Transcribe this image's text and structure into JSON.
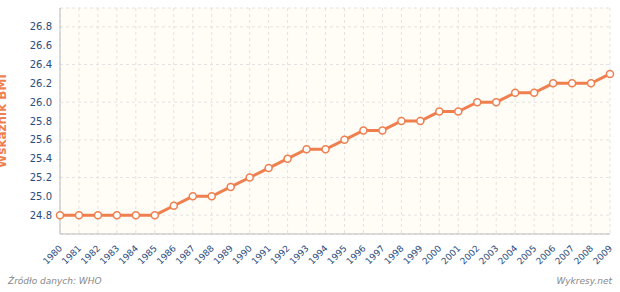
{
  "chart_data": {
    "type": "line",
    "y_label": "Wskaźnik BMI",
    "source": "Źródło danych: WHO",
    "credit": "Wykresy.net",
    "watermark": "wykresy.net",
    "categories": [
      "1980",
      "1981",
      "1982",
      "1983",
      "1984",
      "1985",
      "1986",
      "1987",
      "1988",
      "1989",
      "1990",
      "1991",
      "1992",
      "1993",
      "1994",
      "1995",
      "1996",
      "1997",
      "1998",
      "1999",
      "2000",
      "2001",
      "2002",
      "2003",
      "2004",
      "2005",
      "2006",
      "2007",
      "2008",
      "2009"
    ],
    "values": [
      24.8,
      24.8,
      24.8,
      24.8,
      24.8,
      24.8,
      24.9,
      25.0,
      25.0,
      25.1,
      25.2,
      25.3,
      25.4,
      25.5,
      25.5,
      25.6,
      25.7,
      25.7,
      25.8,
      25.8,
      25.9,
      25.9,
      26.0,
      26.0,
      26.1,
      26.1,
      26.2,
      26.2,
      26.2,
      26.3
    ],
    "color": "#f07f4f",
    "marker": "circle",
    "line_style": "solid",
    "ylim": [
      24.6,
      27.0
    ],
    "yticks": [
      24.8,
      {
        "value": 25,
        "label": "25.0"
      },
      25.2,
      25.4,
      25.6,
      25.8,
      {
        "value": 26,
        "label": "26.0"
      },
      26.2,
      26.4,
      26.6,
      26.8
    ],
    "grid": true
  }
}
